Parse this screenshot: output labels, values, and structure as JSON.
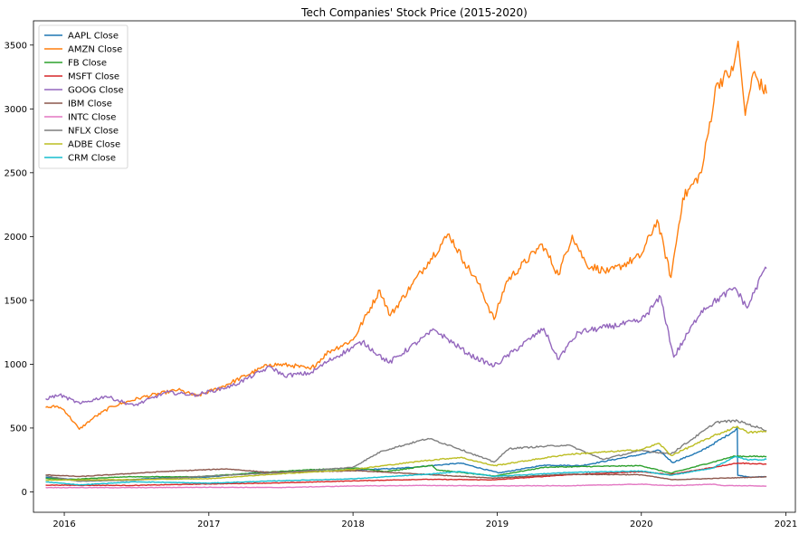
{
  "chart_data": {
    "type": "line",
    "title": "Tech Companies' Stock Price (2015-2020)",
    "xlabel": "",
    "ylabel": "",
    "xlim": [
      "2015-10-15",
      "2021-01-25"
    ],
    "ylim": [
      -160,
      3690
    ],
    "x_ticks": [
      {
        "value": "2016-01-01",
        "label": "2016"
      },
      {
        "value": "2017-01-01",
        "label": "2017"
      },
      {
        "value": "2018-01-01",
        "label": "2018"
      },
      {
        "value": "2019-01-01",
        "label": "2019"
      },
      {
        "value": "2020-01-01",
        "label": "2020"
      },
      {
        "value": "2021-01-01",
        "label": "2021"
      }
    ],
    "y_ticks": [
      {
        "value": 0,
        "label": "0"
      },
      {
        "value": 500,
        "label": "500"
      },
      {
        "value": 1000,
        "label": "1000"
      },
      {
        "value": 1500,
        "label": "1500"
      },
      {
        "value": 2000,
        "label": "2000"
      },
      {
        "value": 2500,
        "label": "2500"
      },
      {
        "value": 3000,
        "label": "3000"
      },
      {
        "value": 3500,
        "label": "3500"
      }
    ],
    "grid": false,
    "legend": "top-left",
    "series": [
      {
        "name": "AAPL Close",
        "color": "#1f77b4",
        "points": [
          [
            "2015-11-15",
            114
          ],
          [
            "2016-02-01",
            96
          ],
          [
            "2016-05-15",
            92
          ],
          [
            "2016-09-01",
            108
          ],
          [
            "2017-01-01",
            116
          ],
          [
            "2017-05-15",
            155
          ],
          [
            "2017-09-01",
            160
          ],
          [
            "2018-01-01",
            170
          ],
          [
            "2018-05-01",
            185
          ],
          [
            "2018-10-01",
            225
          ],
          [
            "2019-01-05",
            148
          ],
          [
            "2019-05-01",
            210
          ],
          [
            "2019-08-01",
            205
          ],
          [
            "2019-12-31",
            293
          ],
          [
            "2020-02-15",
            325
          ],
          [
            "2020-03-20",
            230
          ],
          [
            "2020-06-01",
            320
          ],
          [
            "2020-08-20",
            470
          ],
          [
            "2020-08-31",
            500
          ],
          [
            "2020-09-01",
            130
          ],
          [
            "2020-10-01",
            116
          ],
          [
            "2020-11-13",
            119
          ]
        ]
      },
      {
        "name": "AMZN Close",
        "color": "#ff7f0e",
        "points": [
          [
            "2015-11-15",
            660
          ],
          [
            "2015-12-15",
            670
          ],
          [
            "2016-01-01",
            640
          ],
          [
            "2016-02-08",
            490
          ],
          [
            "2016-03-15",
            580
          ],
          [
            "2016-05-01",
            670
          ],
          [
            "2016-07-15",
            740
          ],
          [
            "2016-10-15",
            800
          ],
          [
            "2016-12-01",
            750
          ],
          [
            "2017-02-01",
            820
          ],
          [
            "2017-06-05",
            1000
          ],
          [
            "2017-08-01",
            990
          ],
          [
            "2017-09-15",
            960
          ],
          [
            "2017-11-01",
            1100
          ],
          [
            "2018-01-01",
            1190
          ],
          [
            "2018-03-10",
            1580
          ],
          [
            "2018-04-05",
            1380
          ],
          [
            "2018-06-01",
            1630
          ],
          [
            "2018-07-10",
            1800
          ],
          [
            "2018-09-01",
            2020
          ],
          [
            "2018-10-10",
            1800
          ],
          [
            "2018-11-15",
            1630
          ],
          [
            "2018-12-24",
            1350
          ],
          [
            "2019-01-25",
            1650
          ],
          [
            "2019-04-25",
            1940
          ],
          [
            "2019-06-05",
            1700
          ],
          [
            "2019-07-10",
            2010
          ],
          [
            "2019-08-15",
            1780
          ],
          [
            "2019-10-10",
            1720
          ],
          [
            "2019-12-31",
            1850
          ],
          [
            "2020-02-10",
            2130
          ],
          [
            "2020-03-16",
            1680
          ],
          [
            "2020-04-15",
            2300
          ],
          [
            "2020-06-01",
            2500
          ],
          [
            "2020-07-10",
            3200
          ],
          [
            "2020-08-20",
            3300
          ],
          [
            "2020-09-02",
            3530
          ],
          [
            "2020-09-20",
            2950
          ],
          [
            "2020-10-10",
            3280
          ],
          [
            "2020-11-13",
            3120
          ]
        ]
      },
      {
        "name": "FB Close",
        "color": "#2ca02c",
        "points": [
          [
            "2015-11-15",
            105
          ],
          [
            "2016-01-15",
            97
          ],
          [
            "2016-06-01",
            118
          ],
          [
            "2016-12-01",
            118
          ],
          [
            "2017-04-01",
            142
          ],
          [
            "2017-09-01",
            172
          ],
          [
            "2018-01-15",
            185
          ],
          [
            "2018-03-25",
            159
          ],
          [
            "2018-07-20",
            209
          ],
          [
            "2018-08-01",
            172
          ],
          [
            "2018-12-24",
            124
          ],
          [
            "2019-05-01",
            193
          ],
          [
            "2019-12-31",
            205
          ],
          [
            "2020-03-16",
            146
          ],
          [
            "2020-08-25",
            280
          ],
          [
            "2020-11-13",
            276
          ]
        ]
      },
      {
        "name": "MSFT Close",
        "color": "#d62728",
        "points": [
          [
            "2015-11-15",
            53
          ],
          [
            "2016-06-15",
            50
          ],
          [
            "2016-12-31",
            62
          ],
          [
            "2017-06-30",
            70
          ],
          [
            "2017-12-31",
            86
          ],
          [
            "2018-06-30",
            98
          ],
          [
            "2018-12-24",
            94
          ],
          [
            "2019-06-30",
            134
          ],
          [
            "2019-12-31",
            158
          ],
          [
            "2020-03-16",
            135
          ],
          [
            "2020-09-01",
            226
          ],
          [
            "2020-11-13",
            216
          ]
        ]
      },
      {
        "name": "GOOG Close",
        "color": "#9467bd",
        "points": [
          [
            "2015-11-15",
            730
          ],
          [
            "2015-12-20",
            760
          ],
          [
            "2016-02-10",
            690
          ],
          [
            "2016-04-15",
            750
          ],
          [
            "2016-06-25",
            675
          ],
          [
            "2016-09-15",
            780
          ],
          [
            "2016-12-01",
            760
          ],
          [
            "2017-03-01",
            830
          ],
          [
            "2017-06-06",
            980
          ],
          [
            "2017-07-10",
            910
          ],
          [
            "2017-09-15",
            930
          ],
          [
            "2017-10-28",
            1020
          ],
          [
            "2018-01-25",
            1175
          ],
          [
            "2018-04-02",
            1010
          ],
          [
            "2018-07-26",
            1270
          ],
          [
            "2018-10-25",
            1070
          ],
          [
            "2018-12-24",
            985
          ],
          [
            "2019-04-29",
            1280
          ],
          [
            "2019-06-03",
            1040
          ],
          [
            "2019-07-26",
            1250
          ],
          [
            "2019-12-31",
            1340
          ],
          [
            "2020-02-19",
            1525
          ],
          [
            "2020-03-23",
            1055
          ],
          [
            "2020-06-01",
            1420
          ],
          [
            "2020-08-25",
            1600
          ],
          [
            "2020-09-25",
            1440
          ],
          [
            "2020-11-10",
            1760
          ],
          [
            "2020-11-13",
            1750
          ]
        ]
      },
      {
        "name": "IBM Close",
        "color": "#8c564b",
        "points": [
          [
            "2015-11-15",
            133
          ],
          [
            "2016-02-10",
            120
          ],
          [
            "2016-09-01",
            158
          ],
          [
            "2017-02-15",
            180
          ],
          [
            "2017-06-01",
            152
          ],
          [
            "2018-01-15",
            165
          ],
          [
            "2018-12-24",
            108
          ],
          [
            "2019-06-30",
            138
          ],
          [
            "2019-12-31",
            134
          ],
          [
            "2020-03-20",
            95
          ],
          [
            "2020-11-13",
            118
          ]
        ]
      },
      {
        "name": "INTC Close",
        "color": "#e377c2",
        "points": [
          [
            "2015-11-15",
            34
          ],
          [
            "2016-06-30",
            33
          ],
          [
            "2016-12-31",
            36
          ],
          [
            "2017-06-30",
            34
          ],
          [
            "2017-12-31",
            46
          ],
          [
            "2018-06-30",
            50
          ],
          [
            "2018-12-31",
            47
          ],
          [
            "2019-06-30",
            48
          ],
          [
            "2019-12-31",
            60
          ],
          [
            "2020-03-20",
            48
          ],
          [
            "2020-06-30",
            60
          ],
          [
            "2020-07-25",
            50
          ],
          [
            "2020-11-13",
            45
          ]
        ]
      },
      {
        "name": "NFLX Close",
        "color": "#7f7f7f",
        "points": [
          [
            "2015-11-15",
            125
          ],
          [
            "2016-02-05",
            83
          ],
          [
            "2016-06-30",
            92
          ],
          [
            "2016-12-31",
            124
          ],
          [
            "2017-06-30",
            150
          ],
          [
            "2017-12-31",
            192
          ],
          [
            "2018-03-15",
            320
          ],
          [
            "2018-07-10",
            418
          ],
          [
            "2018-09-01",
            367
          ],
          [
            "2018-12-24",
            233
          ],
          [
            "2019-02-01",
            340
          ],
          [
            "2019-06-30",
            367
          ],
          [
            "2019-09-25",
            255
          ],
          [
            "2019-12-31",
            324
          ],
          [
            "2020-03-16",
            298
          ],
          [
            "2020-07-10",
            548
          ],
          [
            "2020-09-01",
            556
          ],
          [
            "2020-11-13",
            482
          ]
        ]
      },
      {
        "name": "ADBE Close",
        "color": "#bcbd22",
        "points": [
          [
            "2015-11-15",
            92
          ],
          [
            "2016-06-30",
            96
          ],
          [
            "2016-12-31",
            103
          ],
          [
            "2017-06-30",
            141
          ],
          [
            "2017-12-31",
            175
          ],
          [
            "2018-06-30",
            244
          ],
          [
            "2018-09-30",
            270
          ],
          [
            "2018-12-24",
            205
          ],
          [
            "2019-06-30",
            294
          ],
          [
            "2019-12-31",
            330
          ],
          [
            "2020-02-15",
            380
          ],
          [
            "2020-03-16",
            285
          ],
          [
            "2020-06-30",
            435
          ],
          [
            "2020-08-31",
            513
          ],
          [
            "2020-09-25",
            465
          ],
          [
            "2020-11-13",
            473
          ]
        ]
      },
      {
        "name": "CRM Close",
        "color": "#17becf",
        "points": [
          [
            "2015-11-15",
            78
          ],
          [
            "2016-02-10",
            55
          ],
          [
            "2016-06-30",
            79
          ],
          [
            "2016-12-31",
            68
          ],
          [
            "2017-06-30",
            87
          ],
          [
            "2017-12-31",
            102
          ],
          [
            "2018-06-30",
            136
          ],
          [
            "2018-09-30",
            159
          ],
          [
            "2018-12-24",
            121
          ],
          [
            "2019-06-30",
            152
          ],
          [
            "2019-12-31",
            163
          ],
          [
            "2020-03-16",
            130
          ],
          [
            "2020-06-30",
            187
          ],
          [
            "2020-08-25",
            275
          ],
          [
            "2020-09-30",
            250
          ],
          [
            "2020-11-13",
            255
          ]
        ]
      }
    ]
  }
}
